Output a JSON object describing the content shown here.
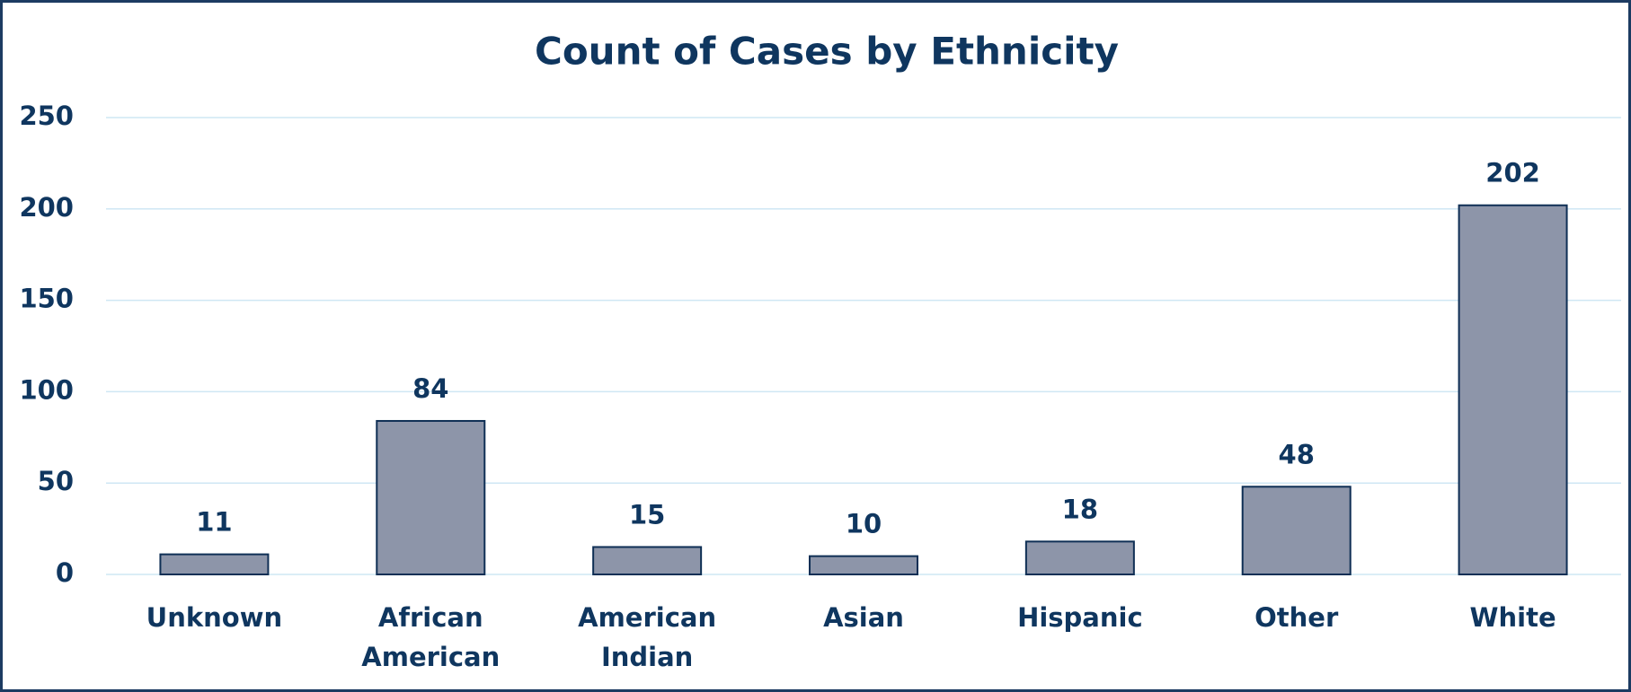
{
  "chart_data": {
    "type": "bar",
    "title": "Count of Cases by Ethnicity",
    "categories": [
      "Unknown",
      "African American",
      "American Indian",
      "Asian",
      "Hispanic",
      "Other",
      "White"
    ],
    "values": [
      11,
      84,
      15,
      10,
      18,
      48,
      202
    ],
    "color": "#8d95a9",
    "ylim": [
      0,
      250
    ],
    "yticks": [
      0,
      50,
      100,
      150,
      200,
      250
    ],
    "grid": true
  }
}
